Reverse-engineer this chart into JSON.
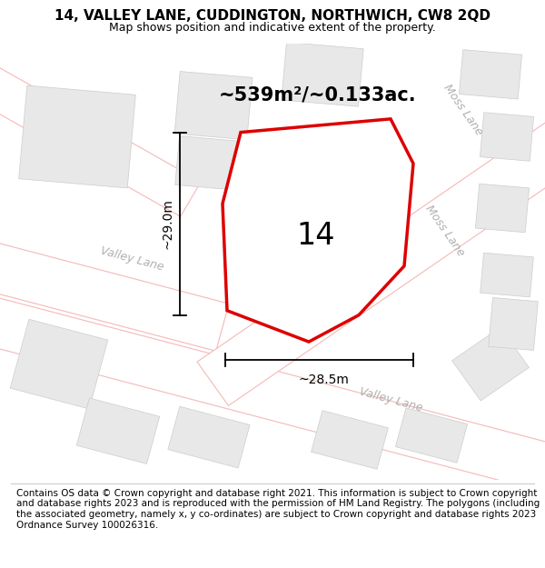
{
  "title": "14, VALLEY LANE, CUDDINGTON, NORTHWICH, CW8 2QD",
  "subtitle": "Map shows position and indicative extent of the property.",
  "footer": "Contains OS data © Crown copyright and database right 2021. This information is subject to Crown copyright and database rights 2023 and is reproduced with the permission of HM Land Registry. The polygons (including the associated geometry, namely x, y co-ordinates) are subject to Crown copyright and database rights 2023 Ordnance Survey 100026316.",
  "area_label": "~539m²/~0.133ac.",
  "number_label": "14",
  "width_label": "~28.5m",
  "height_label": "~29.0m",
  "bg_color": "#ffffff",
  "map_bg": "#ffffff",
  "road_fill": "#ffffff",
  "road_edge": "#f5b8b8",
  "building_fill": "#e8e8e8",
  "building_edge": "#cccccc",
  "plot_fill": "#ffffff",
  "plot_edge_color": "#dd0000",
  "plot_lw": 2.5,
  "road_lw": 0.8,
  "title_fontsize": 11,
  "subtitle_fontsize": 9,
  "footer_fontsize": 7.5,
  "area_fontsize": 15,
  "number_fontsize": 24,
  "dim_fontsize": 10,
  "road_label_fontsize": 9,
  "road_label_color": "#b0b0b0"
}
